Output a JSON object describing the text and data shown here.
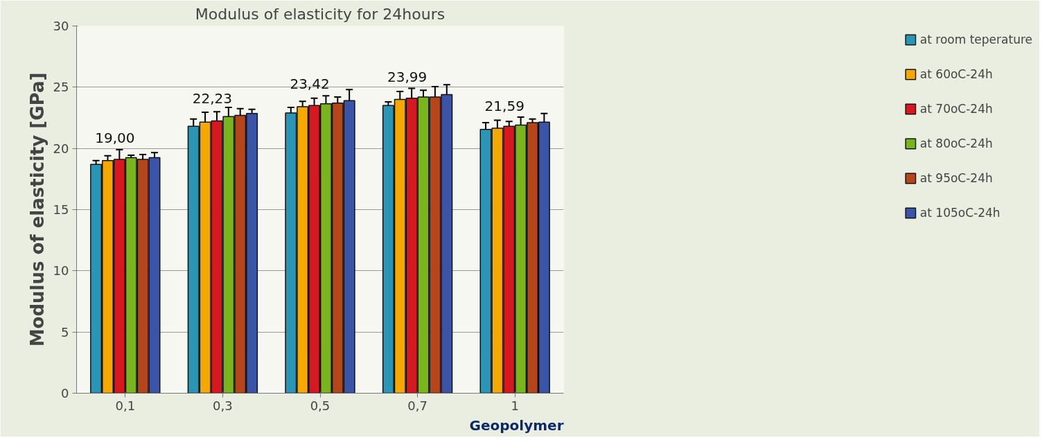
{
  "chart_data": {
    "type": "bar",
    "title": "Modulus of elasticity for 24hours",
    "ylabel": "Modulus of elasticity [GPa]",
    "categories": [
      "0,1",
      "0,3",
      "0,5",
      "0,7",
      "1"
    ],
    "series": [
      {
        "name": "at room teperature",
        "color": "#2a95b5",
        "values": [
          18.7,
          21.8,
          22.9,
          23.5,
          21.55
        ],
        "errors": [
          0.3,
          0.6,
          0.45,
          0.3,
          0.55
        ]
      },
      {
        "name": "at 60oC-24h",
        "color": "#f5a800",
        "values": [
          19.0,
          22.15,
          23.4,
          24.0,
          21.65
        ],
        "errors": [
          0.4,
          0.8,
          0.45,
          0.65,
          0.65
        ]
      },
      {
        "name": "at 70oC-24h",
        "color": "#d81820",
        "values": [
          19.1,
          22.25,
          23.5,
          24.1,
          21.8
        ],
        "errors": [
          0.8,
          0.75,
          0.6,
          0.8,
          0.4
        ]
      },
      {
        "name": "at 80oC-24h",
        "color": "#7ab51e",
        "values": [
          19.25,
          22.6,
          23.65,
          24.2,
          21.9
        ],
        "errors": [
          0.2,
          0.75,
          0.65,
          0.55,
          0.65
        ]
      },
      {
        "name": "at 95oC-24h",
        "color": "#b4461a",
        "values": [
          19.1,
          22.7,
          23.7,
          24.2,
          22.1
        ],
        "errors": [
          0.4,
          0.55,
          0.5,
          0.85,
          0.3
        ]
      },
      {
        "name": "at 105oC-24h",
        "color": "#3a55a8",
        "values": [
          19.25,
          22.85,
          23.9,
          24.4,
          22.15
        ],
        "errors": [
          0.4,
          0.35,
          0.9,
          0.8,
          0.7
        ]
      }
    ],
    "ylim": [
      0,
      30
    ],
    "yticks": [
      0,
      5,
      10,
      15,
      20,
      25,
      30
    ],
    "grid": "y",
    "legend": "right",
    "annotations": [
      {
        "text": "19,00",
        "x": "0,1",
        "y": 19.0
      },
      {
        "text": "22,23",
        "x": "0,3",
        "y": 22.23
      },
      {
        "text": "23,42",
        "x": "0,5",
        "y": 23.42
      },
      {
        "text": "23,99",
        "x": "0,7",
        "y": 23.99
      },
      {
        "text": "21,59",
        "x": "1",
        "y": 21.59
      },
      "Geopolymer"
    ]
  }
}
